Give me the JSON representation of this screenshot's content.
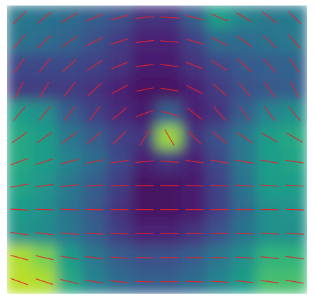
{
  "chart_data": {
    "type": "quiver",
    "colormap": "viridis",
    "color": "#e8202a",
    "angles": [
      [
        44,
        39,
        32,
        24,
        15,
        6,
        -4,
        -14,
        -23,
        -31,
        -38,
        -44
      ],
      [
        50,
        44,
        37,
        28,
        18,
        7,
        -5,
        -17,
        -27,
        -36,
        -43,
        -49
      ],
      [
        56,
        51,
        43,
        34,
        23,
        8,
        -7,
        -21,
        -33,
        -43,
        -50,
        -55
      ],
      [
        63,
        59,
        52,
        43,
        29,
        11,
        -9,
        -27,
        -41,
        -51,
        -58,
        -63
      ],
      [
        50,
        52,
        55,
        54,
        40,
        20,
        -15,
        -38,
        -50,
        -55,
        -55,
        -50
      ],
      [
        35,
        35,
        38,
        40,
        45,
        60,
        -60,
        -45,
        -38,
        -35,
        -30,
        -30
      ],
      [
        20,
        18,
        15,
        12,
        8,
        5,
        -5,
        -8,
        -10,
        -10,
        -10,
        -8
      ],
      [
        10,
        8,
        6,
        4,
        2,
        0,
        0,
        -2,
        -3,
        -4,
        -4,
        -3
      ],
      [
        -3,
        -2,
        -2,
        -1,
        0,
        0,
        0,
        0,
        0,
        0,
        -1,
        -2
      ],
      [
        -8,
        -7,
        -5,
        -3,
        -2,
        0,
        0,
        0,
        0,
        -2,
        -3,
        -4
      ],
      [
        -15,
        -13,
        -10,
        -7,
        -4,
        -2,
        0,
        0,
        -2,
        -4,
        -6,
        -8
      ],
      [
        -20,
        -18,
        -14,
        -10,
        -6,
        -2,
        0,
        -2,
        -4,
        -6,
        -8,
        -10
      ]
    ],
    "intensity": [
      [
        0.4,
        0.38,
        0.35,
        0.3,
        0.25,
        0.15,
        0.15,
        0.3,
        0.55,
        0.45,
        0.4,
        0.42
      ],
      [
        0.38,
        0.35,
        0.32,
        0.25,
        0.18,
        0.1,
        0.1,
        0.2,
        0.35,
        0.35,
        0.38,
        0.4
      ],
      [
        0.22,
        0.22,
        0.22,
        0.2,
        0.15,
        0.08,
        0.08,
        0.15,
        0.22,
        0.28,
        0.3,
        0.32
      ],
      [
        0.18,
        0.18,
        0.18,
        0.15,
        0.1,
        0.05,
        0.05,
        0.1,
        0.18,
        0.25,
        0.28,
        0.3
      ],
      [
        0.55,
        0.5,
        0.3,
        0.2,
        0.12,
        0.08,
        0.3,
        0.1,
        0.15,
        0.3,
        0.45,
        0.5
      ],
      [
        0.6,
        0.55,
        0.4,
        0.3,
        0.2,
        0.15,
        0.85,
        0.15,
        0.25,
        0.4,
        0.55,
        0.6
      ],
      [
        0.6,
        0.55,
        0.45,
        0.35,
        0.22,
        0.1,
        0.15,
        0.1,
        0.22,
        0.4,
        0.55,
        0.58
      ],
      [
        0.58,
        0.52,
        0.4,
        0.3,
        0.18,
        0.05,
        0.05,
        0.08,
        0.2,
        0.38,
        0.55,
        0.55
      ],
      [
        0.55,
        0.5,
        0.38,
        0.28,
        0.15,
        0.05,
        0.05,
        0.08,
        0.2,
        0.35,
        0.5,
        0.52
      ],
      [
        0.52,
        0.48,
        0.4,
        0.3,
        0.18,
        0.1,
        0.1,
        0.15,
        0.25,
        0.38,
        0.5,
        0.5
      ],
      [
        0.88,
        0.8,
        0.55,
        0.4,
        0.3,
        0.25,
        0.25,
        0.3,
        0.4,
        0.5,
        0.65,
        0.65
      ],
      [
        0.9,
        0.88,
        0.6,
        0.45,
        0.35,
        0.3,
        0.3,
        0.35,
        0.45,
        0.55,
        0.7,
        0.7
      ]
    ]
  }
}
